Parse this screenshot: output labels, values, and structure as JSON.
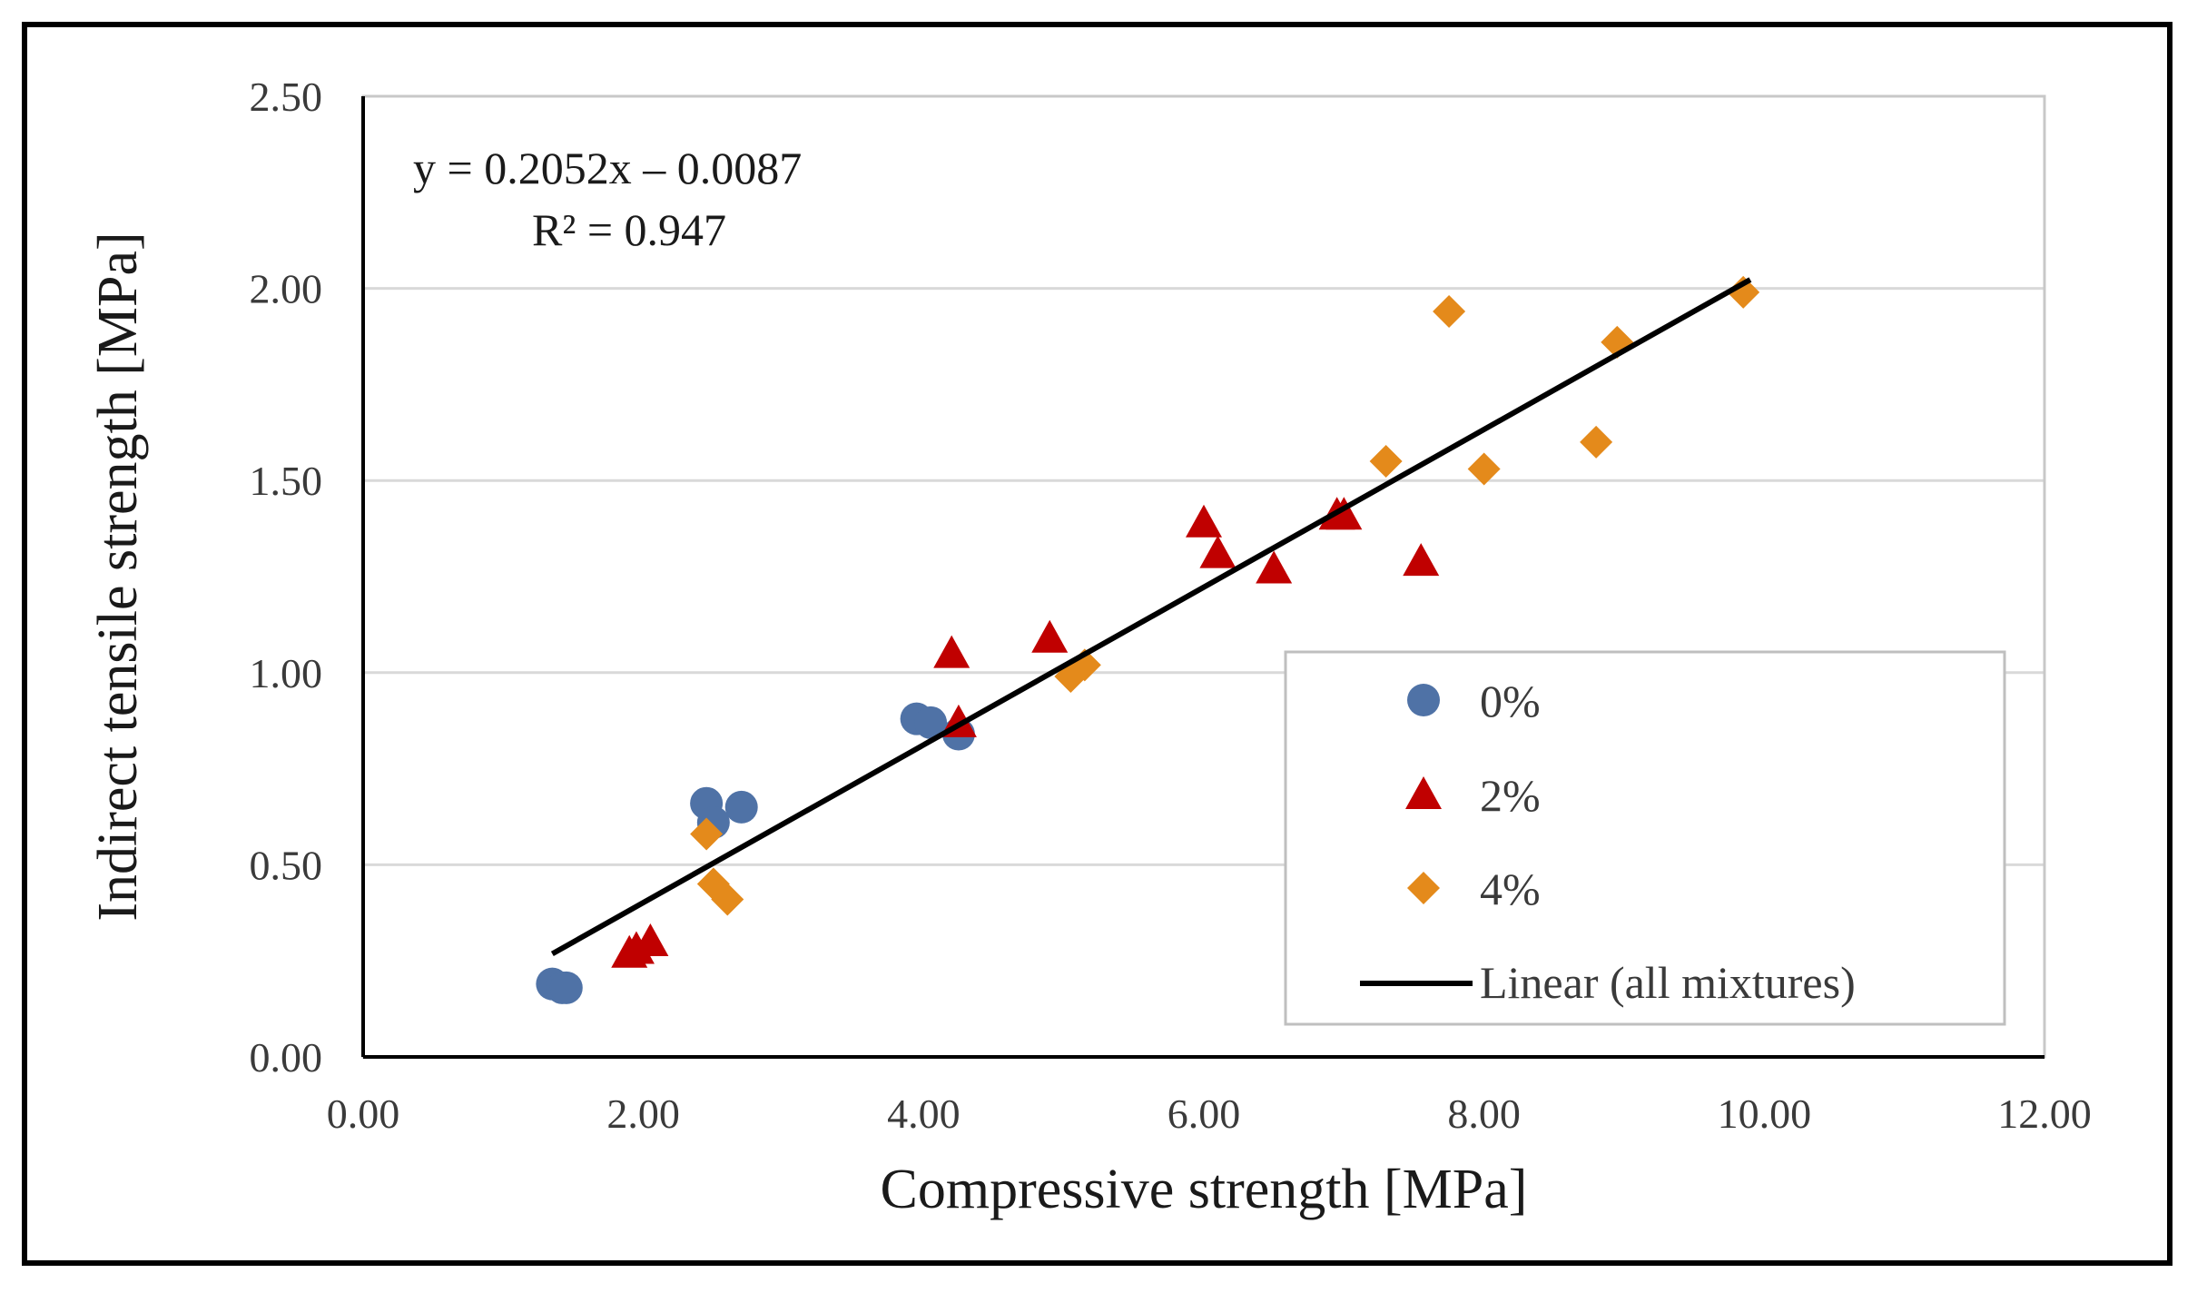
{
  "chart_data": {
    "type": "scatter",
    "xlabel": "Compressive strength [MPa]",
    "ylabel": "Indirect tensile strength [MPa]",
    "xlim": [
      0,
      12
    ],
    "ylim": [
      0,
      2.5
    ],
    "x_ticks": [
      "0.00",
      "2.00",
      "4.00",
      "6.00",
      "8.00",
      "10.00",
      "12.00"
    ],
    "y_ticks": [
      "0.00",
      "0.50",
      "1.00",
      "1.50",
      "2.00",
      "2.50"
    ],
    "grid": "horizontal",
    "legend_position": "bottom-right",
    "series": [
      {
        "name": "0%",
        "marker": "circle",
        "color": "#4F72A6",
        "points": [
          [
            1.35,
            0.19
          ],
          [
            1.42,
            0.18
          ],
          [
            1.45,
            0.18
          ],
          [
            2.45,
            0.66
          ],
          [
            2.5,
            0.61
          ],
          [
            2.7,
            0.65
          ],
          [
            3.95,
            0.88
          ],
          [
            4.05,
            0.87
          ],
          [
            4.25,
            0.84
          ]
        ]
      },
      {
        "name": "2%",
        "marker": "triangle",
        "color": "#C00000",
        "points": [
          [
            1.9,
            0.27
          ],
          [
            1.95,
            0.28
          ],
          [
            2.05,
            0.3
          ],
          [
            4.2,
            1.05
          ],
          [
            4.25,
            0.87
          ],
          [
            4.9,
            1.09
          ],
          [
            6.0,
            1.39
          ],
          [
            6.1,
            1.31
          ],
          [
            6.5,
            1.27
          ],
          [
            6.95,
            1.41
          ],
          [
            7.0,
            1.41
          ],
          [
            7.55,
            1.29
          ]
        ]
      },
      {
        "name": "4%",
        "marker": "diamond",
        "color": "#E48A1B",
        "points": [
          [
            2.45,
            0.58
          ],
          [
            2.5,
            0.45
          ],
          [
            2.6,
            0.41
          ],
          [
            5.05,
            0.99
          ],
          [
            5.15,
            1.02
          ],
          [
            7.3,
            1.55
          ],
          [
            7.75,
            1.94
          ],
          [
            8.0,
            1.53
          ],
          [
            8.8,
            1.6
          ],
          [
            8.95,
            1.86
          ],
          [
            9.85,
            1.99
          ]
        ]
      }
    ],
    "trendline": {
      "name": "Linear (all mixtures)",
      "color": "#000000",
      "slope": 0.2052,
      "intercept": -0.0087,
      "x_range": [
        1.35,
        9.9
      ],
      "equation": "y = 0.2052x – 0.0087",
      "r2": "R² = 0.947"
    }
  }
}
